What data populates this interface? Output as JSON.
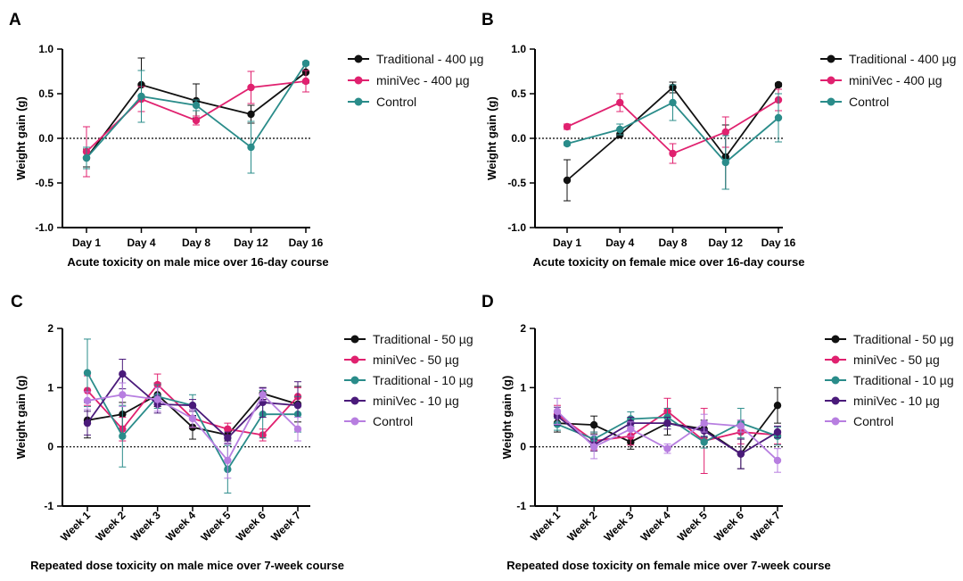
{
  "chart_data": [
    {
      "type": "line",
      "panel_label": "A",
      "title": "",
      "xlabel": "Acute toxicity on male mice over 16-day course",
      "ylabel": "Weight gain (g)",
      "categories": [
        "Day 1",
        "Day 4",
        "Day 8",
        "Day 12",
        "Day 16"
      ],
      "ylim": [
        -1.0,
        1.0
      ],
      "yticks": [
        "1.0",
        "0.5",
        "0.0",
        "-0.5",
        "-1.0"
      ],
      "ytick_values": [
        1.0,
        0.5,
        0.0,
        -0.5,
        -1.0
      ],
      "reference_line": 0,
      "legend_position": "right",
      "series": [
        {
          "name": "Traditional - 400 µg",
          "color": "#111111",
          "values": [
            -0.22,
            0.6,
            0.42,
            0.27,
            0.74
          ],
          "errors": [
            0.1,
            0.3,
            0.19,
            0.1,
            0.12
          ]
        },
        {
          "name": "miniVec - 400 µg",
          "color": "#e0216f",
          "values": [
            -0.15,
            0.44,
            0.2,
            0.57,
            0.64
          ],
          "errors": [
            0.28,
            0.14,
            0.05,
            0.18,
            0.12
          ]
        },
        {
          "name": "Control",
          "color": "#2a8c8a",
          "values": [
            -0.22,
            0.47,
            0.37,
            -0.1,
            0.84
          ],
          "errors": [
            0.12,
            0.29,
            0.06,
            0.29,
            0.02
          ]
        }
      ]
    },
    {
      "type": "line",
      "panel_label": "B",
      "title": "",
      "xlabel": "Acute toxicity on female mice over 16-day course",
      "ylabel": "Weight gain (g)",
      "categories": [
        "Day 1",
        "Day 4",
        "Day 8",
        "Day 12",
        "Day 16"
      ],
      "ylim": [
        -1.0,
        1.0
      ],
      "yticks": [
        "1.0",
        "0.5",
        "0.0",
        "-0.5",
        "-1.0"
      ],
      "ytick_values": [
        1.0,
        0.5,
        0.0,
        -0.5,
        -1.0
      ],
      "reference_line": 0,
      "legend_position": "right",
      "series": [
        {
          "name": "Traditional - 400 µg",
          "color": "#111111",
          "values": [
            -0.47,
            0.04,
            0.57,
            -0.21,
            0.6
          ],
          "errors": [
            0.23,
            0.02,
            0.06,
            0.36,
            0.02
          ]
        },
        {
          "name": "miniVec - 400 µg",
          "color": "#e0216f",
          "values": [
            0.13,
            0.4,
            -0.17,
            0.07,
            0.43
          ],
          "errors": [
            0.03,
            0.1,
            0.11,
            0.17,
            0.12
          ]
        },
        {
          "name": "Control",
          "color": "#2a8c8a",
          "values": [
            -0.06,
            0.1,
            0.4,
            -0.27,
            0.23
          ],
          "errors": [
            0.02,
            0.06,
            0.2,
            0.3,
            0.27
          ]
        }
      ]
    },
    {
      "type": "line",
      "panel_label": "C",
      "title": "",
      "xlabel": "Repeated dose toxicity on male mice over 7-week course",
      "ylabel": "Weight gain (g)",
      "categories": [
        "Week 1",
        "Week 2",
        "Week 3",
        "Week 4",
        "Week 5",
        "Week 6",
        "Week 7"
      ],
      "ylim": [
        -1,
        2
      ],
      "yticks": [
        "2",
        "1",
        "0",
        "-1"
      ],
      "ytick_values": [
        2,
        1,
        0,
        -1
      ],
      "reference_line": 0,
      "legend_position": "right",
      "series": [
        {
          "name": "Traditional - 50 µg",
          "color": "#111111",
          "values": [
            0.45,
            0.55,
            0.88,
            0.33,
            0.2,
            0.9,
            0.72
          ],
          "errors": [
            0.3,
            0.2,
            0.2,
            0.2,
            0.1,
            0.1,
            0.3
          ]
        },
        {
          "name": "miniVec - 50 µg",
          "color": "#e0216f",
          "values": [
            0.95,
            0.3,
            1.05,
            0.48,
            0.3,
            0.2,
            0.85
          ],
          "errors": [
            0.25,
            0.2,
            0.18,
            0.15,
            0.1,
            0.1,
            0.15
          ]
        },
        {
          "name": "Traditional - 10 µg",
          "color": "#2a8c8a",
          "values": [
            1.25,
            0.18,
            0.85,
            0.7,
            -0.38,
            0.55,
            0.55
          ],
          "errors": [
            0.57,
            0.52,
            0.2,
            0.18,
            0.4,
            0.4,
            0.3
          ]
        },
        {
          "name": "miniVec - 10 µg",
          "color": "#4a1a7a",
          "values": [
            0.4,
            1.23,
            0.72,
            0.7,
            0.15,
            0.75,
            0.7
          ],
          "errors": [
            0.2,
            0.25,
            0.15,
            0.1,
            0.1,
            0.25,
            0.4
          ]
        },
        {
          "name": "Control",
          "color": "#b77ee0",
          "values": [
            0.78,
            0.88,
            0.8,
            0.48,
            -0.23,
            0.88,
            0.3
          ],
          "errors": [
            0.15,
            0.2,
            0.2,
            0.15,
            0.3,
            0.1,
            0.2
          ]
        }
      ]
    },
    {
      "type": "line",
      "panel_label": "D",
      "title": "",
      "xlabel": "Repeated dose toxicity on female mice over 7-week course",
      "ylabel": "Weight gain (g)",
      "categories": [
        "Week 1",
        "Week 2",
        "Week 3",
        "Week 4",
        "Week 5",
        "Week 6",
        "Week 7"
      ],
      "ylim": [
        -1,
        2
      ],
      "yticks": [
        "2",
        "1",
        "0",
        "-1"
      ],
      "ytick_values": [
        2,
        1,
        0,
        -1
      ],
      "reference_line": 0,
      "legend_position": "right",
      "series": [
        {
          "name": "Traditional - 50 µg",
          "color": "#111111",
          "values": [
            0.4,
            0.37,
            0.08,
            0.4,
            0.3,
            -0.12,
            0.7
          ],
          "errors": [
            0.15,
            0.15,
            0.12,
            0.2,
            0.15,
            0.25,
            0.3
          ]
        },
        {
          "name": "miniVec - 50 µg",
          "color": "#e0216f",
          "values": [
            0.55,
            0.1,
            0.18,
            0.6,
            0.1,
            0.25,
            0.2
          ],
          "errors": [
            0.15,
            0.15,
            0.15,
            0.22,
            0.55,
            0.2,
            0.15
          ]
        },
        {
          "name": "Traditional - 10 µg",
          "color": "#2a8c8a",
          "values": [
            0.38,
            0.13,
            0.47,
            0.5,
            0.08,
            0.4,
            0.18
          ],
          "errors": [
            0.1,
            0.12,
            0.12,
            0.15,
            0.1,
            0.25,
            0.15
          ]
        },
        {
          "name": "miniVec - 10 µg",
          "color": "#4a1a7a",
          "values": [
            0.52,
            0.03,
            0.4,
            0.4,
            0.27,
            -0.12,
            0.25
          ],
          "errors": [
            0.15,
            0.1,
            0.1,
            0.1,
            0.1,
            0.25,
            0.1
          ]
        },
        {
          "name": "Control",
          "color": "#b77ee0",
          "values": [
            0.6,
            0.0,
            0.3,
            -0.03,
            0.4,
            0.35,
            -0.23
          ],
          "errors": [
            0.22,
            0.2,
            0.12,
            0.08,
            0.15,
            0.1,
            0.2
          ]
        }
      ]
    }
  ]
}
